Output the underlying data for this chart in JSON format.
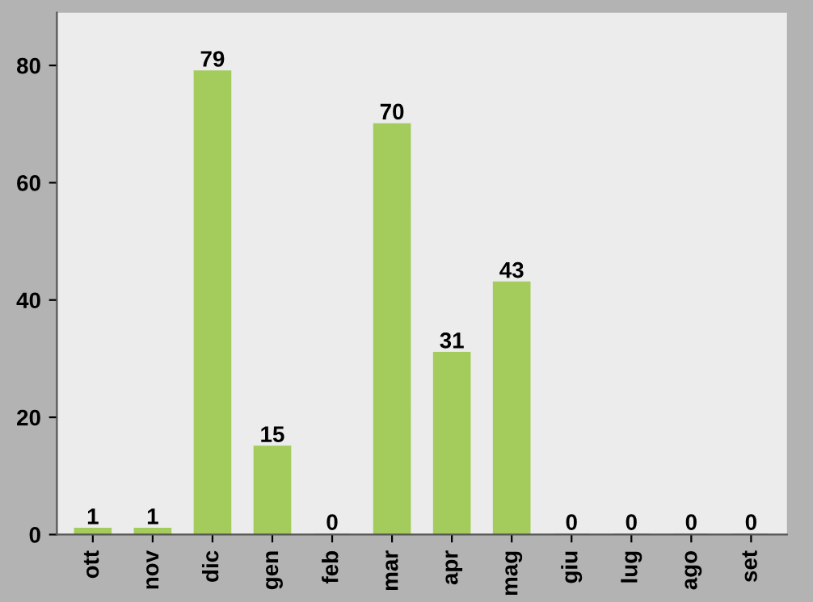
{
  "chart_data": {
    "type": "bar",
    "categories": [
      "ott",
      "nov",
      "dic",
      "gen",
      "feb",
      "mar",
      "apr",
      "mag",
      "giu",
      "lug",
      "ago",
      "set"
    ],
    "values": [
      1,
      1,
      79,
      15,
      0,
      70,
      31,
      43,
      0,
      0,
      0,
      0
    ],
    "color": "#a3cc5c",
    "ylim": [
      0,
      89
    ],
    "yticks": [
      0,
      20,
      40,
      60,
      80
    ],
    "grid": false,
    "data_labels": true
  }
}
